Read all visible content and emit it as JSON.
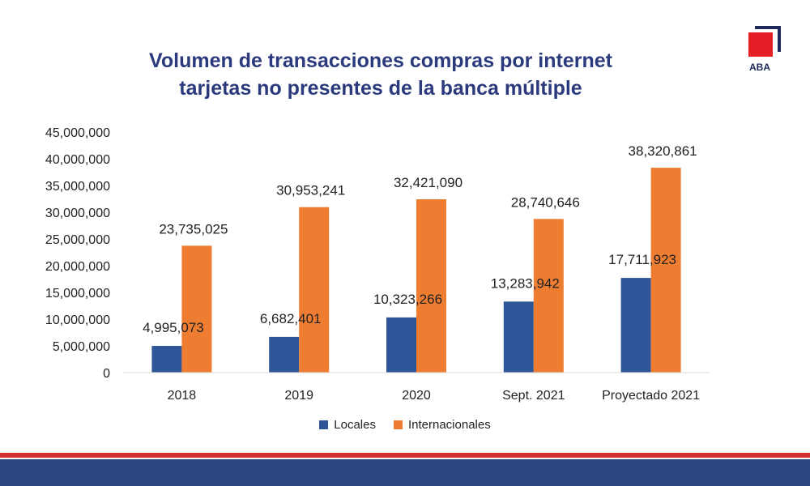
{
  "chart_data": {
    "type": "bar",
    "title": "Volumen de transacciones compras por internet tarjetas no presentes de la banca múltiple",
    "title_lines": [
      "Volumen de transacciones compras por internet",
      "tarjetas no presentes de la banca múltiple"
    ],
    "categories": [
      "2018",
      "2019",
      "2020",
      "Sept. 2021",
      "Proyectado 2021"
    ],
    "series": [
      {
        "name": "Locales",
        "color": "#2e5597",
        "values": [
          4995073,
          6682401,
          10323266,
          13283942,
          17711923
        ],
        "labels": [
          "4,995,073",
          "6,682,401",
          "10,323,266",
          "13,283,942",
          "17,711,923"
        ]
      },
      {
        "name": "Internacionales",
        "color": "#ee7d31",
        "values": [
          23735025,
          30953241,
          32421090,
          28740646,
          38320861
        ],
        "labels": [
          "23,735,025",
          "30,953,241",
          "32,421,090",
          "28,740,646",
          "38,320,861"
        ]
      }
    ],
    "ylim": [
      0,
      45000000
    ],
    "yticks": [
      0,
      5000000,
      10000000,
      15000000,
      20000000,
      25000000,
      30000000,
      35000000,
      40000000,
      45000000
    ],
    "ytick_labels": [
      "0",
      "5,000,000",
      "10,000,000",
      "15,000,000",
      "20,000,000",
      "25,000,000",
      "30,000,000",
      "35,000,000",
      "40,000,000",
      "45,000,000"
    ],
    "grid": false,
    "legend": "bottom-center"
  },
  "logo": {
    "text": "ABA",
    "colors": {
      "red": "#e31e24",
      "navy": "#1e2a5a"
    }
  }
}
